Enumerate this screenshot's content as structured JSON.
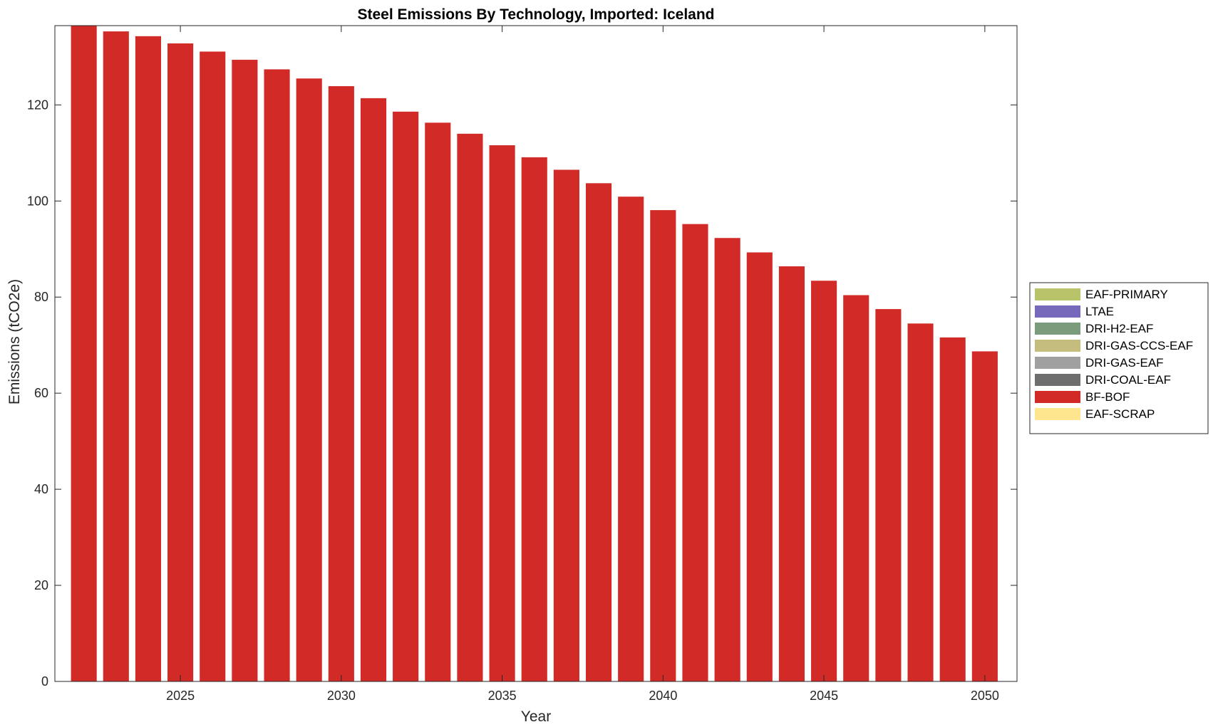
{
  "chart_data": {
    "type": "bar",
    "stacked": true,
    "title": "Steel Emissions By Technology, Imported: Iceland",
    "xlabel": "Year",
    "ylabel": "Emissions (tCO2e)",
    "x": [
      2022,
      2023,
      2024,
      2025,
      2026,
      2027,
      2028,
      2029,
      2030,
      2031,
      2032,
      2033,
      2034,
      2035,
      2036,
      2037,
      2038,
      2039,
      2040,
      2041,
      2042,
      2043,
      2044,
      2045,
      2046,
      2047,
      2048,
      2049,
      2050
    ],
    "xlim": [
      2021.1,
      2051.0
    ],
    "ylim": [
      0,
      136.5
    ],
    "xticks": [
      2025,
      2030,
      2035,
      2040,
      2045,
      2050
    ],
    "yticks": [
      0,
      20,
      40,
      60,
      80,
      100,
      120
    ],
    "grid": false,
    "legend_position": "right",
    "series": [
      {
        "name": "EAF-PRIMARY",
        "color": "#b9c46a",
        "values": [
          0,
          0,
          0,
          0,
          0,
          0,
          0,
          0,
          0,
          0,
          0,
          0,
          0,
          0,
          0,
          0,
          0,
          0,
          0,
          0,
          0,
          0,
          0,
          0,
          0,
          0,
          0,
          0,
          0
        ]
      },
      {
        "name": "LTAE",
        "color": "#7668bb",
        "values": [
          0,
          0,
          0,
          0,
          0,
          0,
          0,
          0,
          0,
          0,
          0,
          0,
          0,
          0,
          0,
          0,
          0,
          0,
          0,
          0,
          0,
          0,
          0,
          0,
          0,
          0,
          0,
          0,
          0
        ]
      },
      {
        "name": "DRI-H2-EAF",
        "color": "#7a9c7c",
        "values": [
          0,
          0,
          0,
          0,
          0,
          0,
          0,
          0,
          0,
          0,
          0,
          0,
          0,
          0,
          0,
          0,
          0,
          0,
          0,
          0,
          0,
          0,
          0,
          0,
          0,
          0,
          0,
          0,
          0
        ]
      },
      {
        "name": "DRI-GAS-CCS-EAF",
        "color": "#c5bd7e",
        "values": [
          0,
          0,
          0,
          0,
          0,
          0,
          0,
          0,
          0,
          0,
          0,
          0,
          0,
          0,
          0,
          0,
          0,
          0,
          0,
          0,
          0,
          0,
          0,
          0,
          0,
          0,
          0,
          0,
          0
        ]
      },
      {
        "name": "DRI-GAS-EAF",
        "color": "#a0a0a0",
        "values": [
          0,
          0,
          0,
          0,
          0,
          0,
          0,
          0,
          0,
          0,
          0,
          0,
          0,
          0,
          0,
          0,
          0,
          0,
          0,
          0,
          0,
          0,
          0,
          0,
          0,
          0,
          0,
          0,
          0
        ]
      },
      {
        "name": "DRI-COAL-EAF",
        "color": "#6e6e6e",
        "values": [
          0,
          0,
          0,
          0,
          0,
          0,
          0,
          0,
          0,
          0,
          0,
          0,
          0,
          0,
          0,
          0,
          0,
          0,
          0,
          0,
          0,
          0,
          0,
          0,
          0,
          0,
          0,
          0,
          0
        ]
      },
      {
        "name": "BF-BOF",
        "color": "#d22a27",
        "values": [
          136.5,
          135.3,
          134.3,
          132.8,
          131.1,
          129.4,
          127.4,
          125.5,
          123.9,
          121.4,
          118.6,
          116.3,
          114.0,
          111.6,
          109.1,
          106.5,
          103.7,
          100.9,
          98.1,
          95.2,
          92.3,
          89.3,
          86.4,
          83.4,
          80.4,
          77.5,
          74.5,
          71.6,
          68.7
        ]
      },
      {
        "name": "EAF-SCRAP",
        "color": "#fde68e",
        "values": [
          0,
          0,
          0,
          0,
          0,
          0,
          0,
          0,
          0,
          0,
          0,
          0,
          0,
          0,
          0,
          0,
          0,
          0,
          0,
          0,
          0,
          0,
          0,
          0,
          0,
          0,
          0,
          0,
          0
        ]
      }
    ]
  }
}
